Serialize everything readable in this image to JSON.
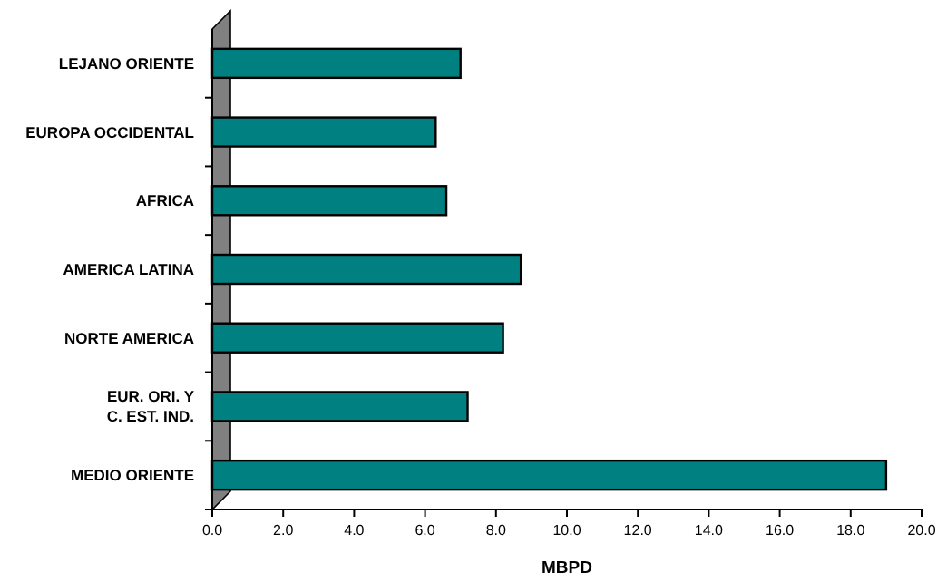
{
  "chart_data": {
    "type": "bar",
    "orientation": "horizontal",
    "xlabel": "MBPD",
    "categories": [
      "LEJANO ORIENTE",
      "EUROPA OCCIDENTAL",
      "AFRICA",
      "AMERICA LATINA",
      "NORTE AMERICA",
      "EUR. ORI. Y C. EST. IND.",
      "MEDIO ORIENTE"
    ],
    "values": [
      7.0,
      6.3,
      6.6,
      8.7,
      8.2,
      7.2,
      19.0
    ],
    "color": "#008080",
    "xlim": [
      0,
      20
    ],
    "xticks": [
      {
        "value": 0,
        "label": "0.0"
      },
      {
        "value": 2,
        "label": "2.0"
      },
      {
        "value": 4,
        "label": "4.0"
      },
      {
        "value": 6,
        "label": "6.0"
      },
      {
        "value": 8,
        "label": "8.0"
      },
      {
        "value": 10,
        "label": "10.0"
      },
      {
        "value": 12,
        "label": "12.0"
      },
      {
        "value": 14,
        "label": "14.0"
      },
      {
        "value": 16,
        "label": "16.0"
      },
      {
        "value": 18,
        "label": "18.0"
      },
      {
        "value": 20,
        "label": "20.0"
      }
    ],
    "grid": false
  }
}
